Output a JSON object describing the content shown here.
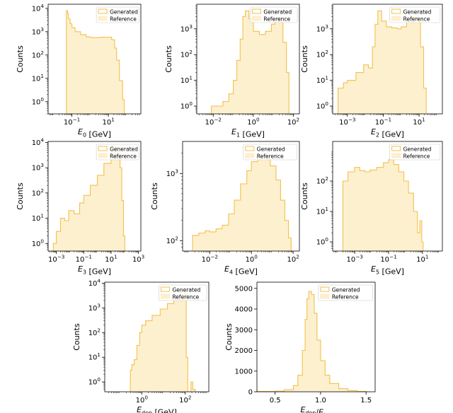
{
  "colors": {
    "generated": "#f2c14e",
    "reference": "#fbe6b3",
    "reference_fill": "#fdf0cf"
  },
  "legend": {
    "generated": "Generated",
    "reference": "Reference"
  },
  "chart_data": [
    {
      "id": "e0",
      "type": "histogram",
      "scale": "log",
      "x_label_base": "E",
      "x_label_sub": "0",
      "x_label_unit": "[GeV]",
      "ylabel": "Counts",
      "xlim": [
        0.005,
        600
      ],
      "ylim": [
        0.3,
        15000
      ],
      "xticks": [
        {
          "v": 0.1,
          "base": "10",
          "exp": "−1"
        },
        {
          "v": 10,
          "base": "10",
          "exp": "1"
        }
      ],
      "yticks": [
        {
          "v": 1,
          "base": "10",
          "exp": "0"
        },
        {
          "v": 10,
          "base": "10",
          "exp": "1"
        },
        {
          "v": 100,
          "base": "10",
          "exp": "2"
        },
        {
          "v": 1000,
          "base": "10",
          "exp": "3"
        },
        {
          "v": 10000,
          "base": "10",
          "exp": "4"
        }
      ],
      "x": [
        0.045,
        0.05,
        0.058,
        0.065,
        0.08,
        0.1,
        0.15,
        0.3,
        0.6,
        1,
        2,
        4,
        8,
        15,
        22,
        28,
        40,
        60,
        75
      ],
      "values": [
        0.3,
        8000,
        6000,
        3500,
        2200,
        1500,
        1000,
        750,
        600,
        560,
        560,
        580,
        580,
        450,
        200,
        60,
        8,
        1.2,
        0.3
      ]
    },
    {
      "id": "e1",
      "type": "histogram",
      "scale": "log",
      "x_label_base": "E",
      "x_label_sub": "1",
      "x_label_unit": "[GeV]",
      "ylabel": "Counts",
      "xlim": [
        0.0015,
        200
      ],
      "ylim": [
        0.5,
        9000
      ],
      "xticks": [
        {
          "v": 0.01,
          "base": "10",
          "exp": "−2"
        },
        {
          "v": 1,
          "base": "10",
          "exp": "0"
        },
        {
          "v": 100,
          "base": "10",
          "exp": "2"
        }
      ],
      "yticks": [
        {
          "v": 1,
          "base": "10",
          "exp": "0"
        },
        {
          "v": 10,
          "base": "10",
          "exp": "1"
        },
        {
          "v": 100,
          "base": "10",
          "exp": "2"
        },
        {
          "v": 1000,
          "base": "10",
          "exp": "3"
        }
      ],
      "x": [
        0.005,
        0.008,
        0.015,
        0.03,
        0.06,
        0.1,
        0.15,
        0.22,
        0.3,
        0.4,
        0.6,
        1,
        2,
        4,
        8,
        12,
        20,
        30,
        45,
        60
      ],
      "values": [
        0.5,
        1,
        1,
        1.5,
        3,
        10,
        60,
        400,
        3000,
        5000,
        2500,
        800,
        600,
        800,
        1500,
        2500,
        2000,
        300,
        20,
        0.5
      ]
    },
    {
      "id": "e2",
      "type": "histogram",
      "scale": "log",
      "x_label_base": "E",
      "x_label_sub": "2",
      "x_label_unit": "[GeV]",
      "ylabel": "Counts",
      "xlim": [
        0.00015,
        200
      ],
      "ylim": [
        0.5,
        9000
      ],
      "xticks": [
        {
          "v": 0.001,
          "base": "10",
          "exp": "−3"
        },
        {
          "v": 0.1,
          "base": "10",
          "exp": "−1"
        },
        {
          "v": 10,
          "base": "10",
          "exp": "1"
        }
      ],
      "yticks": [
        {
          "v": 1,
          "base": "10",
          "exp": "0"
        },
        {
          "v": 10,
          "base": "10",
          "exp": "1"
        },
        {
          "v": 100,
          "base": "10",
          "exp": "2"
        },
        {
          "v": 1000,
          "base": "10",
          "exp": "3"
        }
      ],
      "x": [
        0.00025,
        0.0003,
        0.0006,
        0.001,
        0.003,
        0.008,
        0.015,
        0.025,
        0.035,
        0.05,
        0.08,
        0.15,
        0.3,
        0.6,
        1,
        2,
        4,
        8,
        12,
        18,
        25
      ],
      "values": [
        0.5,
        5,
        8,
        10,
        20,
        40,
        30,
        200,
        1500,
        5000,
        2000,
        1200,
        1100,
        1000,
        1200,
        2000,
        3000,
        2500,
        200,
        5,
        0.5
      ]
    },
    {
      "id": "e3",
      "type": "histogram",
      "scale": "log",
      "x_label_base": "E",
      "x_label_sub": "3",
      "x_label_unit": "[GeV]",
      "ylabel": "Counts",
      "xlim": [
        0.00025,
        1500
      ],
      "ylim": [
        0.5,
        11000
      ],
      "xticks": [
        {
          "v": 0.001,
          "base": "10",
          "exp": "−3"
        },
        {
          "v": 0.1,
          "base": "10",
          "exp": "−1"
        },
        {
          "v": 10,
          "base": "10",
          "exp": "1"
        },
        {
          "v": 1000,
          "base": "10",
          "exp": "3"
        }
      ],
      "yticks": [
        {
          "v": 1,
          "base": "10",
          "exp": "0"
        },
        {
          "v": 10,
          "base": "10",
          "exp": "1"
        },
        {
          "v": 100,
          "base": "10",
          "exp": "2"
        },
        {
          "v": 1000,
          "base": "10",
          "exp": "3"
        },
        {
          "v": 10000,
          "base": "10",
          "exp": "4"
        }
      ],
      "x": [
        0.0005,
        0.0006,
        0.001,
        0.002,
        0.004,
        0.008,
        0.02,
        0.05,
        0.1,
        0.3,
        1,
        3,
        10,
        20,
        30,
        45,
        60,
        80,
        100
      ],
      "values": [
        0.5,
        1,
        3,
        10,
        8,
        20,
        15,
        40,
        80,
        200,
        500,
        1500,
        4000,
        6500,
        5000,
        1000,
        50,
        2,
        0.5
      ]
    },
    {
      "id": "e4",
      "type": "histogram",
      "scale": "log",
      "x_label_base": "E",
      "x_label_sub": "4",
      "x_label_unit": "[GeV]",
      "ylabel": "Counts",
      "xlim": [
        0.0005,
        200
      ],
      "ylim": [
        70,
        3000
      ],
      "xticks": [
        {
          "v": 0.01,
          "base": "10",
          "exp": "−2"
        },
        {
          "v": 1,
          "base": "10",
          "exp": "0"
        },
        {
          "v": 100,
          "base": "10",
          "exp": "2"
        }
      ],
      "yticks": [
        {
          "v": 100,
          "base": "10",
          "exp": "2"
        },
        {
          "v": 1000,
          "base": "10",
          "exp": "3"
        }
      ],
      "x": [
        0.0012,
        0.0015,
        0.003,
        0.006,
        0.01,
        0.02,
        0.04,
        0.08,
        0.15,
        0.3,
        0.6,
        1,
        2,
        3,
        5,
        8,
        15,
        25,
        40,
        60,
        80
      ],
      "values": [
        70,
        120,
        130,
        140,
        135,
        150,
        170,
        250,
        400,
        700,
        1100,
        1500,
        1900,
        1800,
        1700,
        1300,
        800,
        400,
        200,
        110,
        70
      ]
    },
    {
      "id": "e5",
      "type": "histogram",
      "scale": "log",
      "x_label_base": "E",
      "x_label_sub": "5",
      "x_label_unit": "[GeV]",
      "ylabel": "Counts",
      "xlim": [
        5e-05,
        150
      ],
      "ylim": [
        0.5,
        2000
      ],
      "xticks": [
        {
          "v": 0.001,
          "base": "10",
          "exp": "−3"
        },
        {
          "v": 0.1,
          "base": "10",
          "exp": "−1"
        },
        {
          "v": 10,
          "base": "10",
          "exp": "1"
        }
      ],
      "yticks": [
        {
          "v": 1,
          "base": "10",
          "exp": "0"
        },
        {
          "v": 10,
          "base": "10",
          "exp": "1"
        },
        {
          "v": 100,
          "base": "10",
          "exp": "2"
        }
      ],
      "x": [
        0.00018,
        0.0002,
        0.0004,
        0.001,
        0.002,
        0.004,
        0.008,
        0.02,
        0.05,
        0.1,
        0.2,
        0.4,
        0.8,
        1.5,
        3,
        5,
        7,
        9,
        11
      ],
      "values": [
        0.5,
        100,
        200,
        280,
        220,
        200,
        230,
        280,
        400,
        500,
        350,
        200,
        100,
        40,
        10,
        2,
        5,
        1,
        0.5
      ]
    },
    {
      "id": "edep",
      "type": "histogram",
      "scale": "log",
      "x_label_base": "E",
      "x_label_sub": "dep",
      "x_label_unit": "[GeV]",
      "ylabel": "Counts",
      "xlim": [
        0.02,
        1200
      ],
      "ylim": [
        0.4,
        11000
      ],
      "xticks": [
        {
          "v": 1,
          "base": "10",
          "exp": "0"
        },
        {
          "v": 100,
          "base": "10",
          "exp": "2"
        }
      ],
      "yticks": [
        {
          "v": 1,
          "base": "10",
          "exp": "0"
        },
        {
          "v": 10,
          "base": "10",
          "exp": "1"
        },
        {
          "v": 100,
          "base": "10",
          "exp": "2"
        },
        {
          "v": 1000,
          "base": "10",
          "exp": "3"
        },
        {
          "v": 10000,
          "base": "10",
          "exp": "4"
        }
      ],
      "x": [
        0.28,
        0.3,
        0.35,
        0.45,
        0.6,
        0.8,
        1,
        1.5,
        3,
        7,
        15,
        30,
        60,
        85,
        100,
        110,
        130,
        180,
        220,
        280
      ],
      "values": [
        0.4,
        3,
        5,
        8,
        30,
        100,
        200,
        300,
        500,
        900,
        1500,
        3000,
        5000,
        6500,
        5000,
        10,
        0.4,
        1,
        0.5,
        0.4
      ]
    },
    {
      "id": "ratio",
      "type": "histogram",
      "scale": "linear",
      "x_label_base": "E",
      "x_label_sub": "dep",
      "x_label_sep": "/",
      "x_label_base2": "E",
      "x_label_sub2": "inc",
      "ylabel": "Counts",
      "xlim": [
        0.3,
        1.6
      ],
      "ylim": [
        0,
        5300
      ],
      "xticks": [
        {
          "v": 0.5,
          "label": "0.5"
        },
        {
          "v": 1.0,
          "label": "1.0"
        },
        {
          "v": 1.5,
          "label": "1.5"
        }
      ],
      "yticks": [
        {
          "v": 0,
          "label": "0"
        },
        {
          "v": 1000,
          "label": "1000"
        },
        {
          "v": 2000,
          "label": "2000"
        },
        {
          "v": 3000,
          "label": "3000"
        },
        {
          "v": 4000,
          "label": "4000"
        },
        {
          "v": 5000,
          "label": "5000"
        }
      ],
      "x": [
        0.3,
        0.5,
        0.6,
        0.7,
        0.75,
        0.8,
        0.83,
        0.85,
        0.87,
        0.9,
        0.93,
        0.96,
        1.0,
        1.05,
        1.1,
        1.2,
        1.3,
        1.4,
        1.5
      ],
      "values": [
        20,
        30,
        100,
        300,
        800,
        2000,
        3500,
        4500,
        4850,
        4700,
        3800,
        2500,
        1500,
        800,
        400,
        150,
        60,
        20,
        10
      ]
    }
  ]
}
